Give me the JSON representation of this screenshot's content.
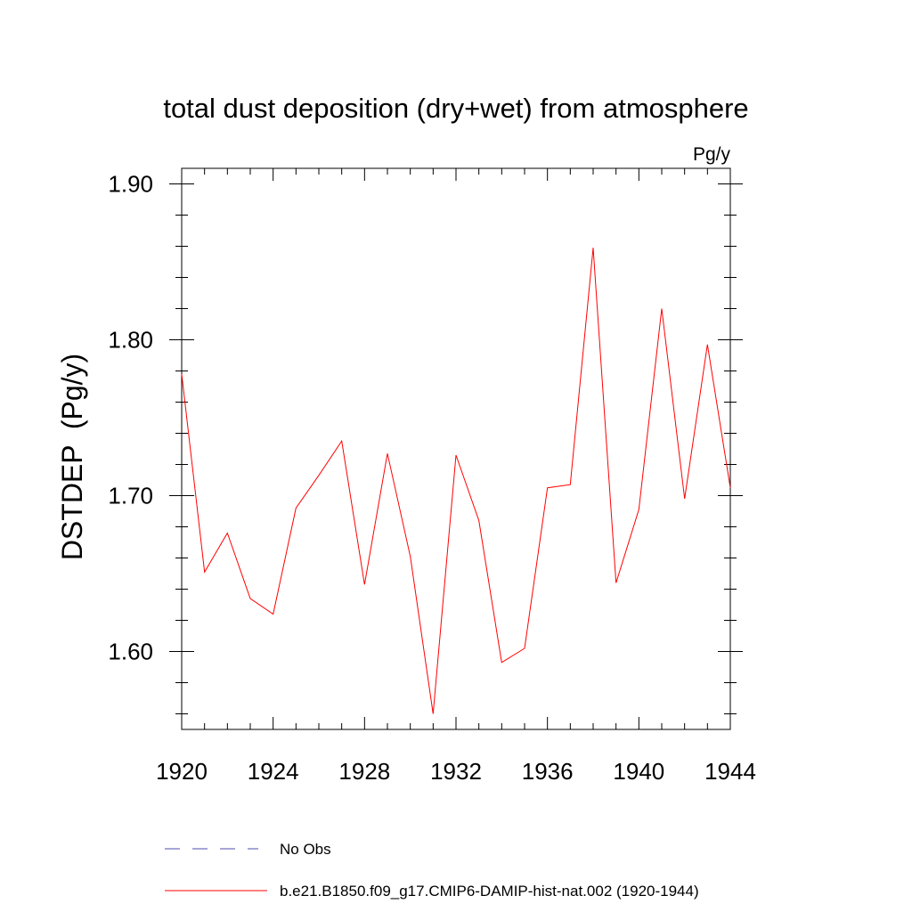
{
  "chart_data": {
    "type": "line",
    "title": "total dust deposition (dry+wet) from atmosphere",
    "units": "Pg/y",
    "ylabel": "DSTDEP  (Pg/y)",
    "xlabel": "",
    "xlim": [
      1920,
      1944
    ],
    "ylim": [
      1.55,
      1.91
    ],
    "x_ticks": [
      1920,
      1924,
      1928,
      1932,
      1936,
      1940,
      1944
    ],
    "x_tick_labels": [
      "1920",
      "1924",
      "1928",
      "1932",
      "1936",
      "1940",
      "1944"
    ],
    "y_ticks": [
      1.6,
      1.7,
      1.8,
      1.9
    ],
    "y_tick_labels": [
      "1.60",
      "1.70",
      "1.80",
      "1.90"
    ],
    "grid": false,
    "x": [
      1920,
      1921,
      1922,
      1923,
      1924,
      1925,
      1926,
      1927,
      1928,
      1929,
      1930,
      1931,
      1932,
      1933,
      1934,
      1935,
      1936,
      1937,
      1938,
      1939,
      1940,
      1941,
      1942,
      1943,
      1944
    ],
    "series": [
      {
        "name": "b.e21.B1850.f09_g17.CMIP6-DAMIP-hist-nat.002 (1920-1944)",
        "color": "#ff0000",
        "values": [
          1.778,
          1.651,
          1.676,
          1.634,
          1.624,
          1.692,
          1.713,
          1.735,
          1.643,
          1.727,
          1.661,
          1.56,
          1.726,
          1.684,
          1.593,
          1.602,
          1.705,
          1.707,
          1.859,
          1.644,
          1.691,
          1.82,
          1.698,
          1.797,
          1.705
        ]
      }
    ],
    "legend": {
      "placement": "bottom",
      "entries": [
        {
          "label": "No Obs",
          "color": "#4c4cb0",
          "style": "dashed"
        },
        {
          "label": "b.e21.B1850.f09_g17.CMIP6-DAMIP-hist-nat.002 (1920-1944)",
          "color": "#ff0000",
          "style": "solid"
        }
      ]
    }
  }
}
